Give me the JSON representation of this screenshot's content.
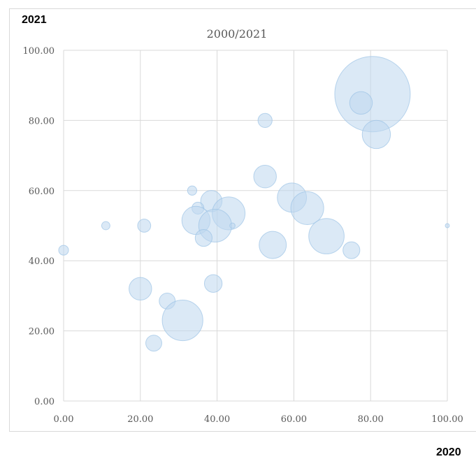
{
  "outer_labels": {
    "y_corner": "2021",
    "x_corner": "2020"
  },
  "chart_data": {
    "type": "scatter",
    "subtype": "bubble",
    "title": "2000/2021",
    "xlabel": "",
    "ylabel": "",
    "xlim": [
      0,
      100
    ],
    "ylim": [
      0,
      100
    ],
    "x_ticks": [
      "0.00",
      "20.00",
      "40.00",
      "60.00",
      "80.00",
      "100.00"
    ],
    "y_ticks": [
      "0.00",
      "20.00",
      "40.00",
      "60.00",
      "80.00",
      "100.00"
    ],
    "grid": true,
    "legend": "none",
    "colors": {
      "bubble_fill": "#bdd7ee",
      "bubble_stroke": "#9dc3e6",
      "grid": "#d9d9d9",
      "tick_text": "#595959"
    },
    "points": [
      {
        "x": 80.5,
        "y": 87.5,
        "size": 100
      },
      {
        "x": 77.5,
        "y": 85,
        "size": 9
      },
      {
        "x": 81.5,
        "y": 76,
        "size": 14
      },
      {
        "x": 52.5,
        "y": 80,
        "size": 3.5
      },
      {
        "x": 52.5,
        "y": 64,
        "size": 9
      },
      {
        "x": 59.5,
        "y": 58,
        "size": 15
      },
      {
        "x": 63.5,
        "y": 55,
        "size": 19
      },
      {
        "x": 68.5,
        "y": 47,
        "size": 22
      },
      {
        "x": 75,
        "y": 43,
        "size": 5
      },
      {
        "x": 54.5,
        "y": 44.5,
        "size": 13
      },
      {
        "x": 33.5,
        "y": 60,
        "size": 1.5
      },
      {
        "x": 38.5,
        "y": 57,
        "size": 8
      },
      {
        "x": 35,
        "y": 55,
        "size": 2.5
      },
      {
        "x": 43,
        "y": 53.5,
        "size": 19
      },
      {
        "x": 34.5,
        "y": 51.5,
        "size": 14
      },
      {
        "x": 39.5,
        "y": 50,
        "size": 19
      },
      {
        "x": 44,
        "y": 50,
        "size": 0.5
      },
      {
        "x": 36.5,
        "y": 46.5,
        "size": 5
      },
      {
        "x": 21,
        "y": 50,
        "size": 3
      },
      {
        "x": 11,
        "y": 50,
        "size": 1.2
      },
      {
        "x": 0,
        "y": 43,
        "size": 1.7
      },
      {
        "x": 100,
        "y": 50,
        "size": 0.3
      },
      {
        "x": 20,
        "y": 32,
        "size": 9
      },
      {
        "x": 27,
        "y": 28.5,
        "size": 4.5
      },
      {
        "x": 39,
        "y": 33.5,
        "size": 5.5
      },
      {
        "x": 31,
        "y": 23,
        "size": 29
      },
      {
        "x": 23.5,
        "y": 16.5,
        "size": 4.5
      }
    ]
  }
}
